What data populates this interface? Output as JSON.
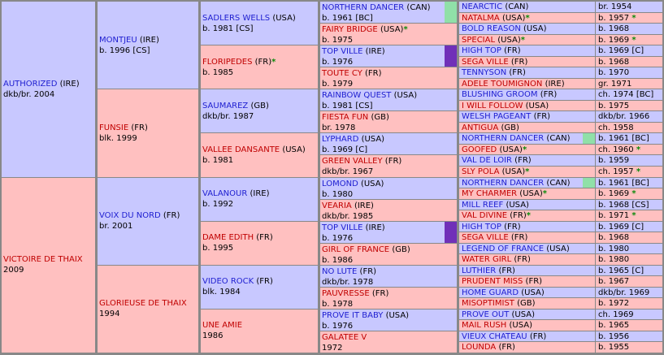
{
  "colors": {
    "male_bg": "#c8c8ff",
    "female_bg": "#ffc0c0",
    "grid": "#888888",
    "green_marker": "#90e0a8",
    "purple_marker": "#7030b8",
    "star": "#0a8a0a"
  },
  "g1": [
    {
      "name": "AUTHORIZED",
      "country": "(IRE)",
      "detail": "dkb/br. 2004",
      "sex": "m"
    },
    {
      "name": "VICTOIRE DE THAIX",
      "country": "",
      "detail": "2009",
      "sex": "f"
    }
  ],
  "g2": [
    {
      "name": "MONTJEU",
      "country": "(IRE)",
      "detail": "b. 1996 [CS]",
      "sex": "m"
    },
    {
      "name": "FUNSIE",
      "country": "(FR)",
      "detail": "blk. 1999",
      "sex": "f"
    },
    {
      "name": "VOIX DU NORD",
      "country": "(FR)",
      "detail": "br. 2001",
      "sex": "m"
    },
    {
      "name": "GLORIEUSE DE THAIX",
      "country": "",
      "detail": "1994",
      "sex": "f"
    }
  ],
  "g3": [
    {
      "name": "SADLERS WELLS",
      "country": "(USA)",
      "detail": "b. 1981 [CS]",
      "sex": "m",
      "star": ""
    },
    {
      "name": "FLORIPEDES",
      "country": "(FR)",
      "detail": "b. 1985",
      "sex": "f",
      "star": "*"
    },
    {
      "name": "SAUMAREZ",
      "country": "(GB)",
      "detail": "dkb/br. 1987",
      "sex": "m",
      "star": ""
    },
    {
      "name": "VALLEE DANSANTE",
      "country": "(USA)",
      "detail": "b. 1981",
      "sex": "f",
      "star": ""
    },
    {
      "name": "VALANOUR",
      "country": "(IRE)",
      "detail": "b. 1992",
      "sex": "m",
      "star": ""
    },
    {
      "name": "DAME EDITH",
      "country": "(FR)",
      "detail": "b. 1995",
      "sex": "f",
      "star": ""
    },
    {
      "name": "VIDEO ROCK",
      "country": "(FR)",
      "detail": "blk. 1984",
      "sex": "m",
      "star": ""
    },
    {
      "name": "UNE AMIE",
      "country": "",
      "detail": "1986",
      "sex": "f",
      "star": ""
    }
  ],
  "g4": [
    {
      "name": "NORTHERN DANCER",
      "country": "(CAN)",
      "detail": "b. 1961 [BC]",
      "sex": "m",
      "star": "",
      "marker": "green"
    },
    {
      "name": "FAIRY BRIDGE",
      "country": "(USA)",
      "detail": "b. 1975",
      "sex": "f",
      "star": "*",
      "marker": ""
    },
    {
      "name": "TOP VILLE",
      "country": "(IRE)",
      "detail": "b. 1976",
      "sex": "m",
      "star": "",
      "marker": "purple"
    },
    {
      "name": "TOUTE CY",
      "country": "(FR)",
      "detail": "b. 1979",
      "sex": "f",
      "star": "",
      "marker": ""
    },
    {
      "name": "RAINBOW QUEST",
      "country": "(USA)",
      "detail": "b. 1981 [CS]",
      "sex": "m",
      "star": "",
      "marker": ""
    },
    {
      "name": "FIESTA FUN",
      "country": "(GB)",
      "detail": "br. 1978",
      "sex": "f",
      "star": "",
      "marker": ""
    },
    {
      "name": "LYPHARD",
      "country": "(USA)",
      "detail": "b. 1969 [C]",
      "sex": "m",
      "star": "",
      "marker": ""
    },
    {
      "name": "GREEN VALLEY",
      "country": "(FR)",
      "detail": "dkb/br. 1967",
      "sex": "f",
      "star": "",
      "marker": ""
    },
    {
      "name": "LOMOND",
      "country": "(USA)",
      "detail": "b. 1980",
      "sex": "m",
      "star": "",
      "marker": ""
    },
    {
      "name": "VEARIA",
      "country": "(IRE)",
      "detail": "dkb/br. 1985",
      "sex": "f",
      "star": "",
      "marker": ""
    },
    {
      "name": "TOP VILLE",
      "country": "(IRE)",
      "detail": "b. 1976",
      "sex": "m",
      "star": "",
      "marker": "purple"
    },
    {
      "name": "GIRL OF FRANCE",
      "country": "(GB)",
      "detail": "b. 1986",
      "sex": "f",
      "star": "",
      "marker": ""
    },
    {
      "name": "NO LUTE",
      "country": "(FR)",
      "detail": "dkb/br. 1978",
      "sex": "m",
      "star": "",
      "marker": ""
    },
    {
      "name": "PAUVRESSE",
      "country": "(FR)",
      "detail": "b. 1978",
      "sex": "f",
      "star": "",
      "marker": ""
    },
    {
      "name": "PROVE IT BABY",
      "country": "(USA)",
      "detail": "b. 1976",
      "sex": "m",
      "star": "",
      "marker": ""
    },
    {
      "name": "GALATEE V",
      "country": "",
      "detail": "1972",
      "sex": "f",
      "star": "",
      "marker": ""
    }
  ],
  "g5": [
    {
      "name": "NEARCTIC",
      "country": "(CAN)",
      "detail": "br. 1954",
      "sex": "m",
      "star": "",
      "marker": ""
    },
    {
      "name": "NATALMA",
      "country": "(USA)",
      "detail": "b. 1957",
      "sex": "f",
      "star": "*",
      "marker": ""
    },
    {
      "name": "BOLD REASON",
      "country": "(USA)",
      "detail": "b. 1968",
      "sex": "m",
      "star": "",
      "marker": ""
    },
    {
      "name": "SPECIAL",
      "country": "(USA)",
      "detail": "b. 1969",
      "sex": "f",
      "star": "*",
      "marker": ""
    },
    {
      "name": "HIGH TOP",
      "country": "(FR)",
      "detail": "b. 1969 [C]",
      "sex": "m",
      "star": "",
      "marker": ""
    },
    {
      "name": "SEGA VILLE",
      "country": "(FR)",
      "detail": "b. 1968",
      "sex": "f",
      "star": "",
      "marker": ""
    },
    {
      "name": "TENNYSON",
      "country": "(FR)",
      "detail": "b. 1970",
      "sex": "m",
      "star": "",
      "marker": ""
    },
    {
      "name": "ADELE TOUMIGNON",
      "country": "(IRE)",
      "detail": "gr. 1971",
      "sex": "f",
      "star": "",
      "marker": ""
    },
    {
      "name": "BLUSHING GROOM",
      "country": "(FR)",
      "detail": "ch. 1974 [BC]",
      "sex": "m",
      "star": "",
      "marker": ""
    },
    {
      "name": "I WILL FOLLOW",
      "country": "(USA)",
      "detail": "b. 1975",
      "sex": "f",
      "star": "",
      "marker": ""
    },
    {
      "name": "WELSH PAGEANT",
      "country": "(FR)",
      "detail": "dkb/br. 1966",
      "sex": "m",
      "star": "",
      "marker": ""
    },
    {
      "name": "ANTIGUA",
      "country": "(GB)",
      "detail": "ch. 1958",
      "sex": "f",
      "star": "",
      "marker": ""
    },
    {
      "name": "NORTHERN DANCER",
      "country": "(CAN)",
      "detail": "b. 1961 [BC]",
      "sex": "m",
      "star": "",
      "marker": "green"
    },
    {
      "name": "GOOFED",
      "country": "(USA)",
      "detail": "ch. 1960",
      "sex": "f",
      "star": "*",
      "marker": ""
    },
    {
      "name": "VAL DE LOIR",
      "country": "(FR)",
      "detail": "b. 1959",
      "sex": "m",
      "star": "",
      "marker": ""
    },
    {
      "name": "SLY POLA",
      "country": "(USA)",
      "detail": "ch. 1957",
      "sex": "f",
      "star": "*",
      "marker": ""
    },
    {
      "name": "NORTHERN DANCER",
      "country": "(CAN)",
      "detail": "b. 1961 [BC]",
      "sex": "m",
      "star": "",
      "marker": "green"
    },
    {
      "name": "MY CHARMER",
      "country": "(USA)",
      "detail": "b. 1969",
      "sex": "f",
      "star": "*",
      "marker": ""
    },
    {
      "name": "MILL REEF",
      "country": "(USA)",
      "detail": "b. 1968 [CS]",
      "sex": "m",
      "star": "",
      "marker": ""
    },
    {
      "name": "VAL DIVINE",
      "country": "(FR)",
      "detail": "b. 1971",
      "sex": "f",
      "star": "*",
      "marker": ""
    },
    {
      "name": "HIGH TOP",
      "country": "(FR)",
      "detail": "b. 1969 [C]",
      "sex": "m",
      "star": "",
      "marker": ""
    },
    {
      "name": "SEGA VILLE",
      "country": "(FR)",
      "detail": "b. 1968",
      "sex": "f",
      "star": "",
      "marker": ""
    },
    {
      "name": "LEGEND OF FRANCE",
      "country": "(USA)",
      "detail": "b. 1980",
      "sex": "m",
      "star": "",
      "marker": ""
    },
    {
      "name": "WATER GIRL",
      "country": "(FR)",
      "detail": "b. 1980",
      "sex": "f",
      "star": "",
      "marker": ""
    },
    {
      "name": "LUTHIER",
      "country": "(FR)",
      "detail": "b. 1965 [C]",
      "sex": "m",
      "star": "",
      "marker": ""
    },
    {
      "name": "PRUDENT MISS",
      "country": "(FR)",
      "detail": "b. 1967",
      "sex": "f",
      "star": "",
      "marker": ""
    },
    {
      "name": "HOME GUARD",
      "country": "(USA)",
      "detail": "dkb/br. 1969",
      "sex": "m",
      "star": "",
      "marker": ""
    },
    {
      "name": "MISOPTIMIST",
      "country": "(GB)",
      "detail": "b. 1972",
      "sex": "f",
      "star": "",
      "marker": ""
    },
    {
      "name": "PROVE OUT",
      "country": "(USA)",
      "detail": "ch. 1969",
      "sex": "m",
      "star": "",
      "marker": ""
    },
    {
      "name": "MAIL RUSH",
      "country": "(USA)",
      "detail": "b. 1965",
      "sex": "f",
      "star": "",
      "marker": ""
    },
    {
      "name": "VIEUX CHATEAU",
      "country": "(FR)",
      "detail": "b. 1956",
      "sex": "m",
      "star": "",
      "marker": ""
    },
    {
      "name": "LOUNDA",
      "country": "(FR)",
      "detail": "b. 1955",
      "sex": "f",
      "star": "",
      "marker": ""
    }
  ]
}
